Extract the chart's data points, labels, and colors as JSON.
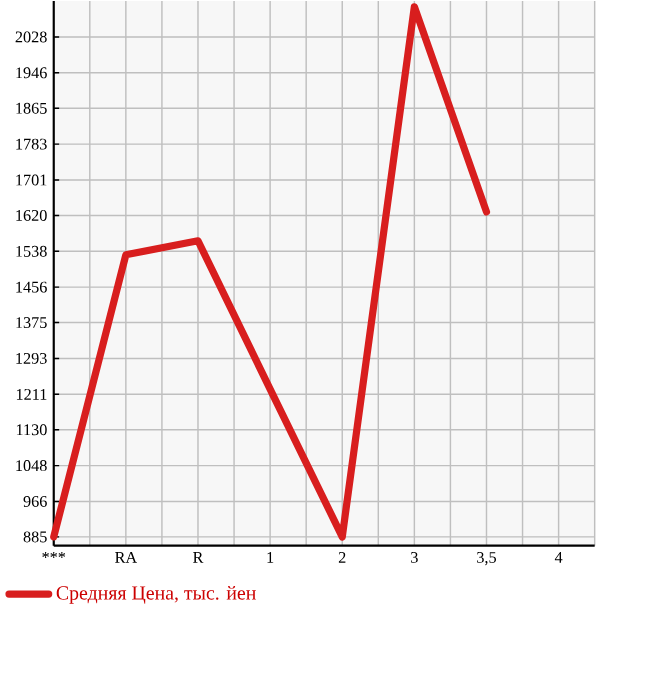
{
  "chart_data": {
    "type": "line",
    "categories": [
      "***",
      "RA",
      "R",
      "1",
      "2",
      "3",
      "3,5",
      "4"
    ],
    "series": [
      {
        "name": "Средняя Цена, тыс. йен",
        "color": "#d81e1e",
        "values": [
          885,
          1530,
          1562,
          1223,
          885,
          2097,
          1628,
          null
        ]
      }
    ],
    "ylim": [
      865,
      2110
    ],
    "yticks": [
      885,
      966,
      1048,
      1130,
      1211,
      1293,
      1375,
      1456,
      1538,
      1620,
      1701,
      1783,
      1865,
      1946,
      2028
    ],
    "grid": true,
    "legend": "bottom",
    "marker": "none",
    "line_style": "solid"
  }
}
